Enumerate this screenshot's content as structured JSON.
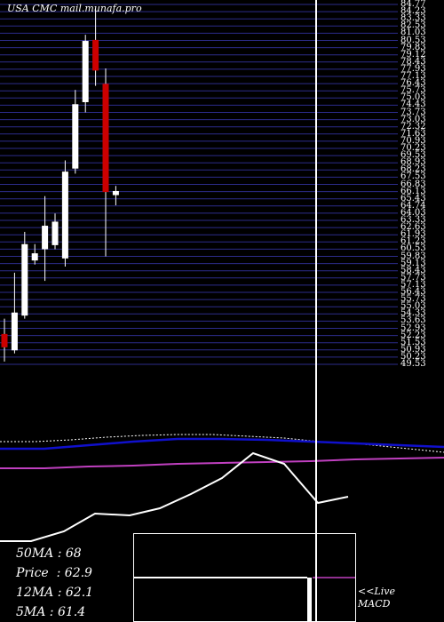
{
  "site_label": "USA CMC mail.munafa.pro",
  "price_ticks": [
    "84.77",
    "84.23",
    "83.33",
    "82.53",
    "81.03",
    "80.53",
    "79.83",
    "79.12",
    "78.43",
    "77.93",
    "77.13",
    "76.43",
    "75.73",
    "75.03",
    "74.43",
    "73.73",
    "73.03",
    "72.32",
    "71.63",
    "70.93",
    "70.23",
    "69.53",
    "68.93",
    "68.23",
    "67.53",
    "66.83",
    "66.13",
    "65.43",
    "64.74",
    "64.03",
    "63.33",
    "62.63",
    "61.93",
    "61.23",
    "60.53",
    "59.83",
    "59.13",
    "58.43",
    "57.73",
    "57.13",
    "56.43",
    "55.73",
    "55.03",
    "54.33",
    "53.63",
    "52.93",
    "52.23",
    "51.53",
    "50.93",
    "50.23",
    "49.53"
  ],
  "stats": {
    "ma50": "50MA : 68",
    "price": "Price  : 62.9",
    "ma12": "12MA : 62.1",
    "ma5": "5MA : 61.4"
  },
  "macd_note": {
    "line1": "<<Live",
    "line2": "MACD"
  },
  "colors": {
    "gridline": "#2c2c8a",
    "bull": "#ffffff",
    "bear": "#cc0000",
    "ma_blue": "#1010cc",
    "ma_magenta": "#c040c0",
    "dotted": "#ffffff",
    "divider": "#ffffff"
  },
  "chart_data": {
    "type": "candlestick",
    "candles": [
      {
        "open": 52.5,
        "high": 54.0,
        "low": 49.8,
        "close": 51.2
      },
      {
        "open": 50.9,
        "high": 58.5,
        "low": 50.6,
        "close": 54.6
      },
      {
        "open": 54.3,
        "high": 62.5,
        "low": 54.0,
        "close": 61.3
      },
      {
        "open": 59.7,
        "high": 61.3,
        "low": 59.3,
        "close": 60.4
      },
      {
        "open": 60.8,
        "high": 66.0,
        "low": 57.7,
        "close": 63.1
      },
      {
        "open": 61.2,
        "high": 64.3,
        "low": 60.8,
        "close": 63.5
      },
      {
        "open": 59.9,
        "high": 69.5,
        "low": 59.1,
        "close": 68.4
      },
      {
        "open": 68.7,
        "high": 76.4,
        "low": 68.2,
        "close": 75.0
      },
      {
        "open": 75.2,
        "high": 81.8,
        "low": 74.2,
        "close": 81.2
      },
      {
        "open": 81.3,
        "high": 84.4,
        "low": 76.8,
        "close": 78.3
      },
      {
        "open": 77.0,
        "high": 78.5,
        "low": 60.1,
        "close": 66.4
      },
      {
        "open": 66.1,
        "high": 67.0,
        "low": 65.1,
        "close": 66.5
      }
    ],
    "ylim": [
      49.53,
      84.77
    ]
  }
}
